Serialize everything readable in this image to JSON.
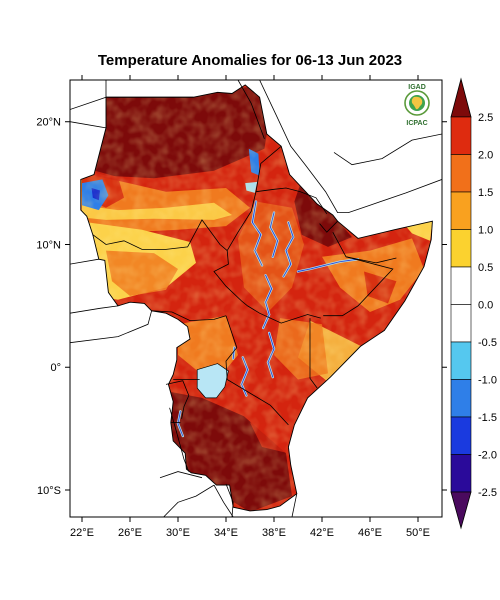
{
  "title": "Temperature Anomalies for 06-13 Jun 2023",
  "logo": {
    "top": "IGAD",
    "bottom": "ICPAC"
  },
  "map": {
    "lon_range": [
      21,
      52
    ],
    "lat_range": [
      -12.2,
      23.4
    ],
    "lon_ticks": [
      {
        "value": 22,
        "label": "22°E"
      },
      {
        "value": 26,
        "label": "26°E"
      },
      {
        "value": 30,
        "label": "30°E"
      },
      {
        "value": 34,
        "label": "34°E"
      },
      {
        "value": 38,
        "label": "38°E"
      },
      {
        "value": 42,
        "label": "42°E"
      },
      {
        "value": 46,
        "label": "46°E"
      },
      {
        "value": 50,
        "label": "50°E"
      }
    ],
    "lat_ticks": [
      {
        "value": 20,
        "label": "20°N"
      },
      {
        "value": 10,
        "label": "10°N"
      },
      {
        "value": 0,
        "label": "0°"
      },
      {
        "value": -10,
        "label": "10°S"
      }
    ]
  },
  "colorbar": {
    "colors": [
      "#4a0a5e",
      "#2a0a9a",
      "#1a3adf",
      "#2f7fe8",
      "#55c8ef",
      "#ffffff",
      "#ffffff",
      "#fbd22f",
      "#f9a11f",
      "#f1701a",
      "#de2b0f",
      "#7d0a0a"
    ],
    "tick_labels": [
      "-2.5",
      "-2.0",
      "-1.5",
      "-1.0",
      "-0.5",
      "0.0",
      "0.5",
      "1.0",
      "1.5",
      "2.0",
      "2.5"
    ],
    "palette": {
      "deep_red": "#7d0a0a",
      "red": "#d4240f",
      "orange": "#f07a1f",
      "yellow": "#fcd24a",
      "blue": "#2f7fe8",
      "light_blue": "#a8e0f2",
      "water": "#b8e6f5"
    }
  }
}
